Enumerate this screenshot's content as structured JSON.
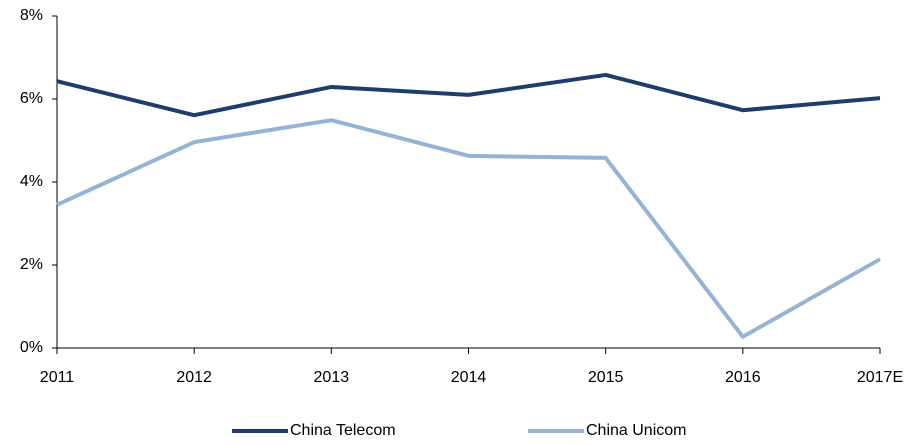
{
  "chart_data": {
    "type": "line",
    "categories": [
      "2011",
      "2012",
      "2013",
      "2014",
      "2015",
      "2016",
      "2017E"
    ],
    "series": [
      {
        "name": "China Telecom",
        "color": "#1f3d6b",
        "values": [
          6.43,
          5.61,
          6.29,
          6.1,
          6.58,
          5.73,
          6.02
        ]
      },
      {
        "name": "China Unicom",
        "color": "#95b3d7",
        "values": [
          3.45,
          4.96,
          5.49,
          4.63,
          4.58,
          0.27,
          2.14
        ]
      }
    ],
    "ylim": [
      0,
      8
    ],
    "yticks": [
      {
        "value": 0,
        "label": "0%"
      },
      {
        "value": 2,
        "label": "2%"
      },
      {
        "value": 4,
        "label": "4%"
      },
      {
        "value": 6,
        "label": "6%"
      },
      {
        "value": 8,
        "label": "8%"
      }
    ],
    "grid": false,
    "legend": "bottom"
  }
}
